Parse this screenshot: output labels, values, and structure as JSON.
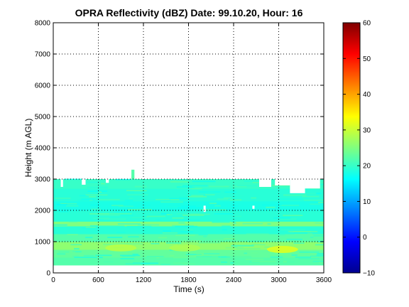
{
  "chart_data": {
    "type": "heatmap",
    "title": "OPRA Reflectivity (dBZ)  Date: 99.10.20, Hour: 16",
    "xlabel": "Time (s)",
    "ylabel": "Height (m AGL)",
    "xlim": [
      0,
      3600
    ],
    "ylim": [
      0,
      8000
    ],
    "xticks": [
      "0",
      "600",
      "1200",
      "1800",
      "2400",
      "3000",
      "3600"
    ],
    "yticks": [
      "0",
      "1000",
      "2000",
      "3000",
      "4000",
      "5000",
      "6000",
      "7000",
      "8000"
    ],
    "grid": true,
    "colormap": "jet",
    "colorbar": {
      "range": [
        -10,
        60
      ],
      "ticks": [
        "−10",
        "0",
        "10",
        "20",
        "30",
        "40",
        "50",
        "60"
      ]
    },
    "echo": {
      "bottom_m": 250,
      "top_m": 3000,
      "layers": [
        {
          "from_m": 250,
          "to_m": 500,
          "dbz": 22
        },
        {
          "from_m": 500,
          "to_m": 750,
          "dbz": 23
        },
        {
          "from_m": 750,
          "to_m": 1000,
          "dbz": 26
        },
        {
          "from_m": 1000,
          "to_m": 1250,
          "dbz": 22
        },
        {
          "from_m": 1250,
          "to_m": 1500,
          "dbz": 19
        },
        {
          "from_m": 1500,
          "to_m": 1650,
          "dbz": 25
        },
        {
          "from_m": 1650,
          "to_m": 2000,
          "dbz": 19
        },
        {
          "from_m": 2000,
          "to_m": 2300,
          "dbz": 18
        },
        {
          "from_m": 2300,
          "to_m": 2700,
          "dbz": 19
        },
        {
          "from_m": 2700,
          "to_m": 3000,
          "dbz": 20
        }
      ],
      "max_cells": [
        {
          "time_s": 900,
          "height_m": 800,
          "dbz": 29
        },
        {
          "time_s": 1750,
          "height_m": 800,
          "dbz": 28
        },
        {
          "time_s": 3050,
          "height_m": 750,
          "dbz": 32
        }
      ],
      "top_gaps": [
        {
          "t0_s": 100,
          "t1_s": 130,
          "depth_m": 250
        },
        {
          "t0_s": 380,
          "t1_s": 430,
          "depth_m": 180
        },
        {
          "t0_s": 700,
          "t1_s": 740,
          "depth_m": 120
        },
        {
          "t0_s": 2740,
          "t1_s": 2900,
          "depth_m": 250
        },
        {
          "t0_s": 2950,
          "t1_s": 3150,
          "depth_m": 200
        },
        {
          "t0_s": 3150,
          "t1_s": 3350,
          "depth_m": 450
        },
        {
          "t0_s": 3350,
          "t1_s": 3550,
          "depth_m": 300
        }
      ],
      "spike": {
        "time_s": 1060,
        "height_m": 3300
      }
    }
  }
}
